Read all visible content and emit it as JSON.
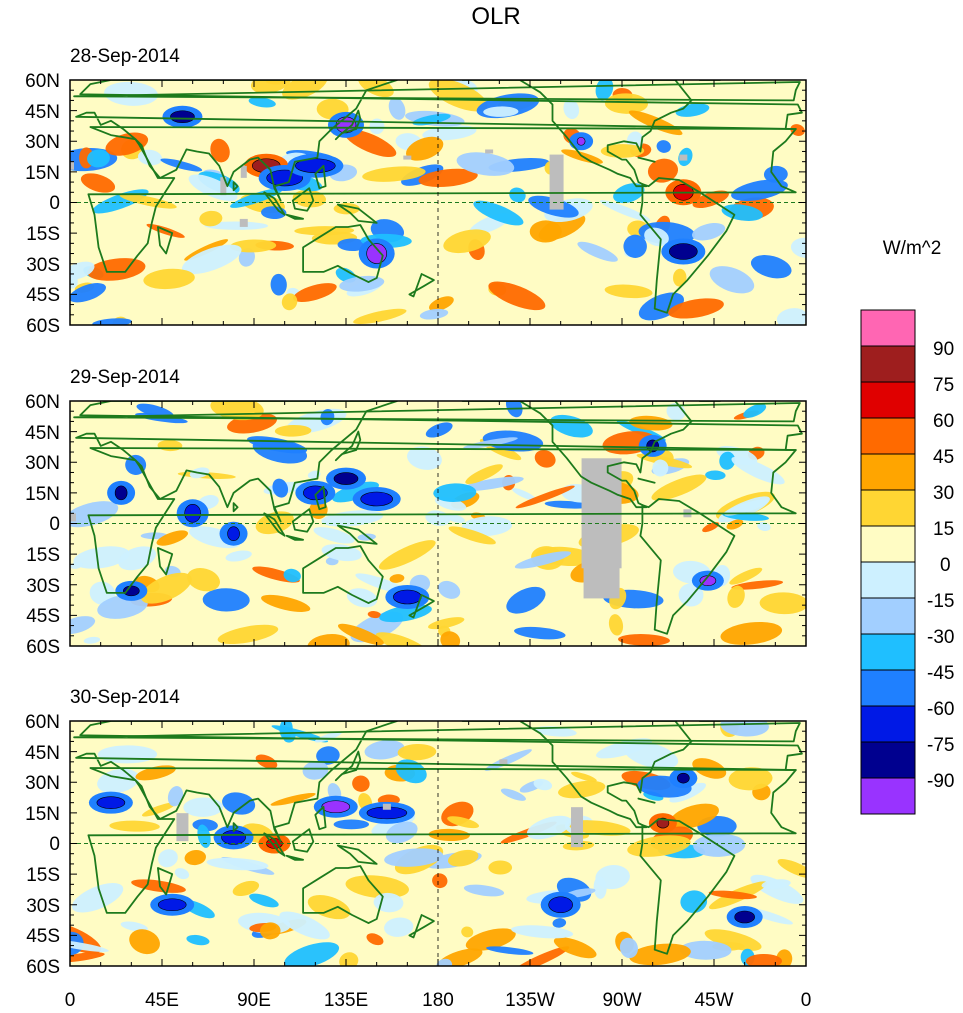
{
  "chart_data": {
    "type": "heatmap",
    "title": "OLR",
    "units": "W/m^2",
    "colorbar": {
      "levels": [
        "90",
        "75",
        "60",
        "45",
        "30",
        "15",
        "0",
        "-15",
        "-30",
        "-45",
        "-60",
        "-75",
        "-90"
      ],
      "colors": [
        "#ff66b3",
        "#9e1e1e",
        "#e00000",
        "#ff6a00",
        "#ffa500",
        "#ffd633",
        "#fffcc4",
        "#cdf0ff",
        "#a2cfff",
        "#1fbfff",
        "#1f80ff",
        "#0019e6",
        "#00008f",
        "#9933ff"
      ]
    },
    "longitude_ticks": [
      "0",
      "45E",
      "90E",
      "135E",
      "180",
      "135W",
      "90W",
      "45W",
      "0"
    ],
    "latitude_ticks": [
      "60N",
      "45N",
      "30N",
      "15N",
      "0",
      "15S",
      "30S",
      "45S",
      "60S"
    ],
    "panels": [
      {
        "date": "28-Sep-2014"
      },
      {
        "date": "29-Sep-2014"
      },
      {
        "date": "30-Sep-2014"
      }
    ],
    "missing_color": "#bdbdbd",
    "coastline_color": "#1d7a1d"
  }
}
